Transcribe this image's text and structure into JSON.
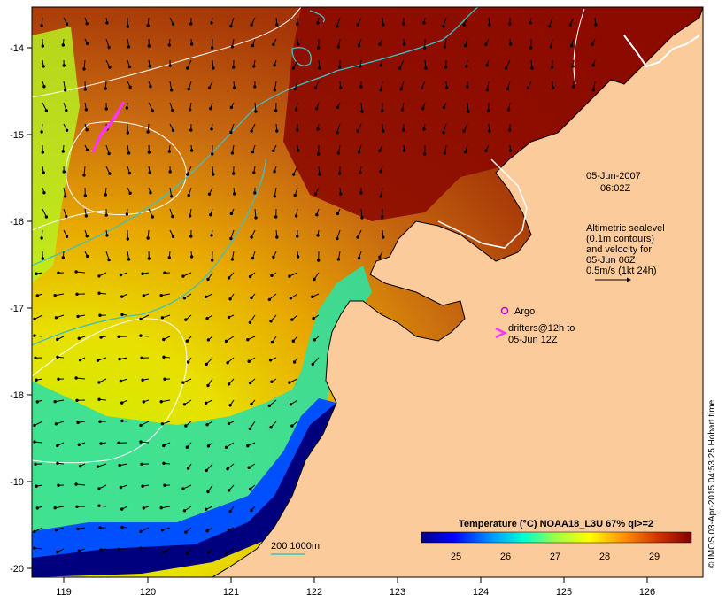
{
  "map": {
    "date": "05-Jun-2007",
    "time": "06:02Z",
    "altimetry": {
      "lines": [
        "Altimetric sealevel",
        "(0.1m contours)",
        "and velocity for",
        "05-Jun 06Z",
        "0.5m/s (1kt 24h)"
      ]
    },
    "legend": {
      "argo_label": "Argo",
      "drifters_line1": "drifters@12h to",
      "drifters_line2": "05-Jun 12Z",
      "isobath_label": "200  1000m"
    },
    "colorbar": {
      "title": "Temperature (°C) NOAA18_L3U 67% ql>=2",
      "ticks": [
        "25",
        "26",
        "27",
        "28",
        "29"
      ],
      "range": [
        24.2,
        29.6
      ]
    },
    "axes": {
      "lon_ticks": [
        "119",
        "120",
        "121",
        "122",
        "123",
        "124",
        "125",
        "126"
      ],
      "lat_ticks": [
        "-14",
        "-15",
        "-16",
        "-17",
        "-18",
        "-19",
        "-20"
      ],
      "lon_range": [
        118.65,
        126.7
      ],
      "lat_range": [
        -20.1,
        -13.58
      ]
    },
    "copyright": "© IMOS 03-Apr-2015 04:53:25 Hobart time",
    "colors": {
      "land": "#fccb9b",
      "isobath": "#3fc0c0",
      "drifter": "#ff33ff",
      "argo": "#cc00cc"
    }
  }
}
